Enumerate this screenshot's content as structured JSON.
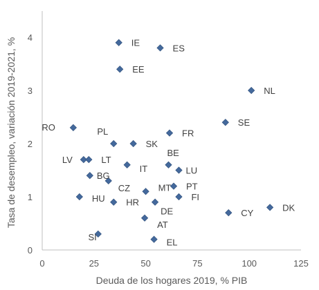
{
  "chart_data": {
    "type": "scatter",
    "title": "",
    "xlabel": "Deuda de los hogares 2019, % PIB",
    "ylabel": "Tasa de desempleo, variación 2019-2021, %",
    "xlim": [
      0,
      125
    ],
    "ylim": [
      0,
      4.5
    ],
    "xticks": [
      0,
      25,
      50,
      75,
      100,
      125
    ],
    "yticks": [
      0,
      1,
      2,
      3,
      4
    ],
    "grid": false,
    "marker_color": "#44699c",
    "points": [
      {
        "label": "IE",
        "x": 37,
        "y": 3.9
      },
      {
        "label": "ES",
        "x": 57,
        "y": 3.8
      },
      {
        "label": "EE",
        "x": 37.5,
        "y": 3.4
      },
      {
        "label": "NL",
        "x": 101,
        "y": 3.0
      },
      {
        "label": "SE",
        "x": 88.5,
        "y": 2.4
      },
      {
        "label": "RO",
        "x": 15,
        "y": 2.3
      },
      {
        "label": "PL",
        "x": 34.5,
        "y": 2.0
      },
      {
        "label": "SK",
        "x": 44,
        "y": 2.0
      },
      {
        "label": "FR",
        "x": 61.5,
        "y": 2.2
      },
      {
        "label": "LV",
        "x": 20,
        "y": 1.7
      },
      {
        "label": "LT",
        "x": 22.5,
        "y": 1.7
      },
      {
        "label": "IT",
        "x": 41,
        "y": 1.6
      },
      {
        "label": "BE",
        "x": 61,
        "y": 1.6
      },
      {
        "label": "LU",
        "x": 66,
        "y": 1.5
      },
      {
        "label": "BG",
        "x": 23,
        "y": 1.4
      },
      {
        "label": "CZ",
        "x": 32,
        "y": 1.3
      },
      {
        "label": "PT",
        "x": 63.5,
        "y": 1.2
      },
      {
        "label": "MT",
        "x": 50,
        "y": 1.1
      },
      {
        "label": "HU",
        "x": 18,
        "y": 1.0
      },
      {
        "label": "HR",
        "x": 34.5,
        "y": 0.9
      },
      {
        "label": "DE",
        "x": 54.5,
        "y": 0.9
      },
      {
        "label": "FI",
        "x": 66,
        "y": 1.0
      },
      {
        "label": "DK",
        "x": 110,
        "y": 0.8
      },
      {
        "label": "CY",
        "x": 90,
        "y": 0.7
      },
      {
        "label": "AT",
        "x": 49.5,
        "y": 0.6
      },
      {
        "label": "SI",
        "x": 27,
        "y": 0.3
      },
      {
        "label": "EL",
        "x": 54,
        "y": 0.2
      }
    ]
  }
}
